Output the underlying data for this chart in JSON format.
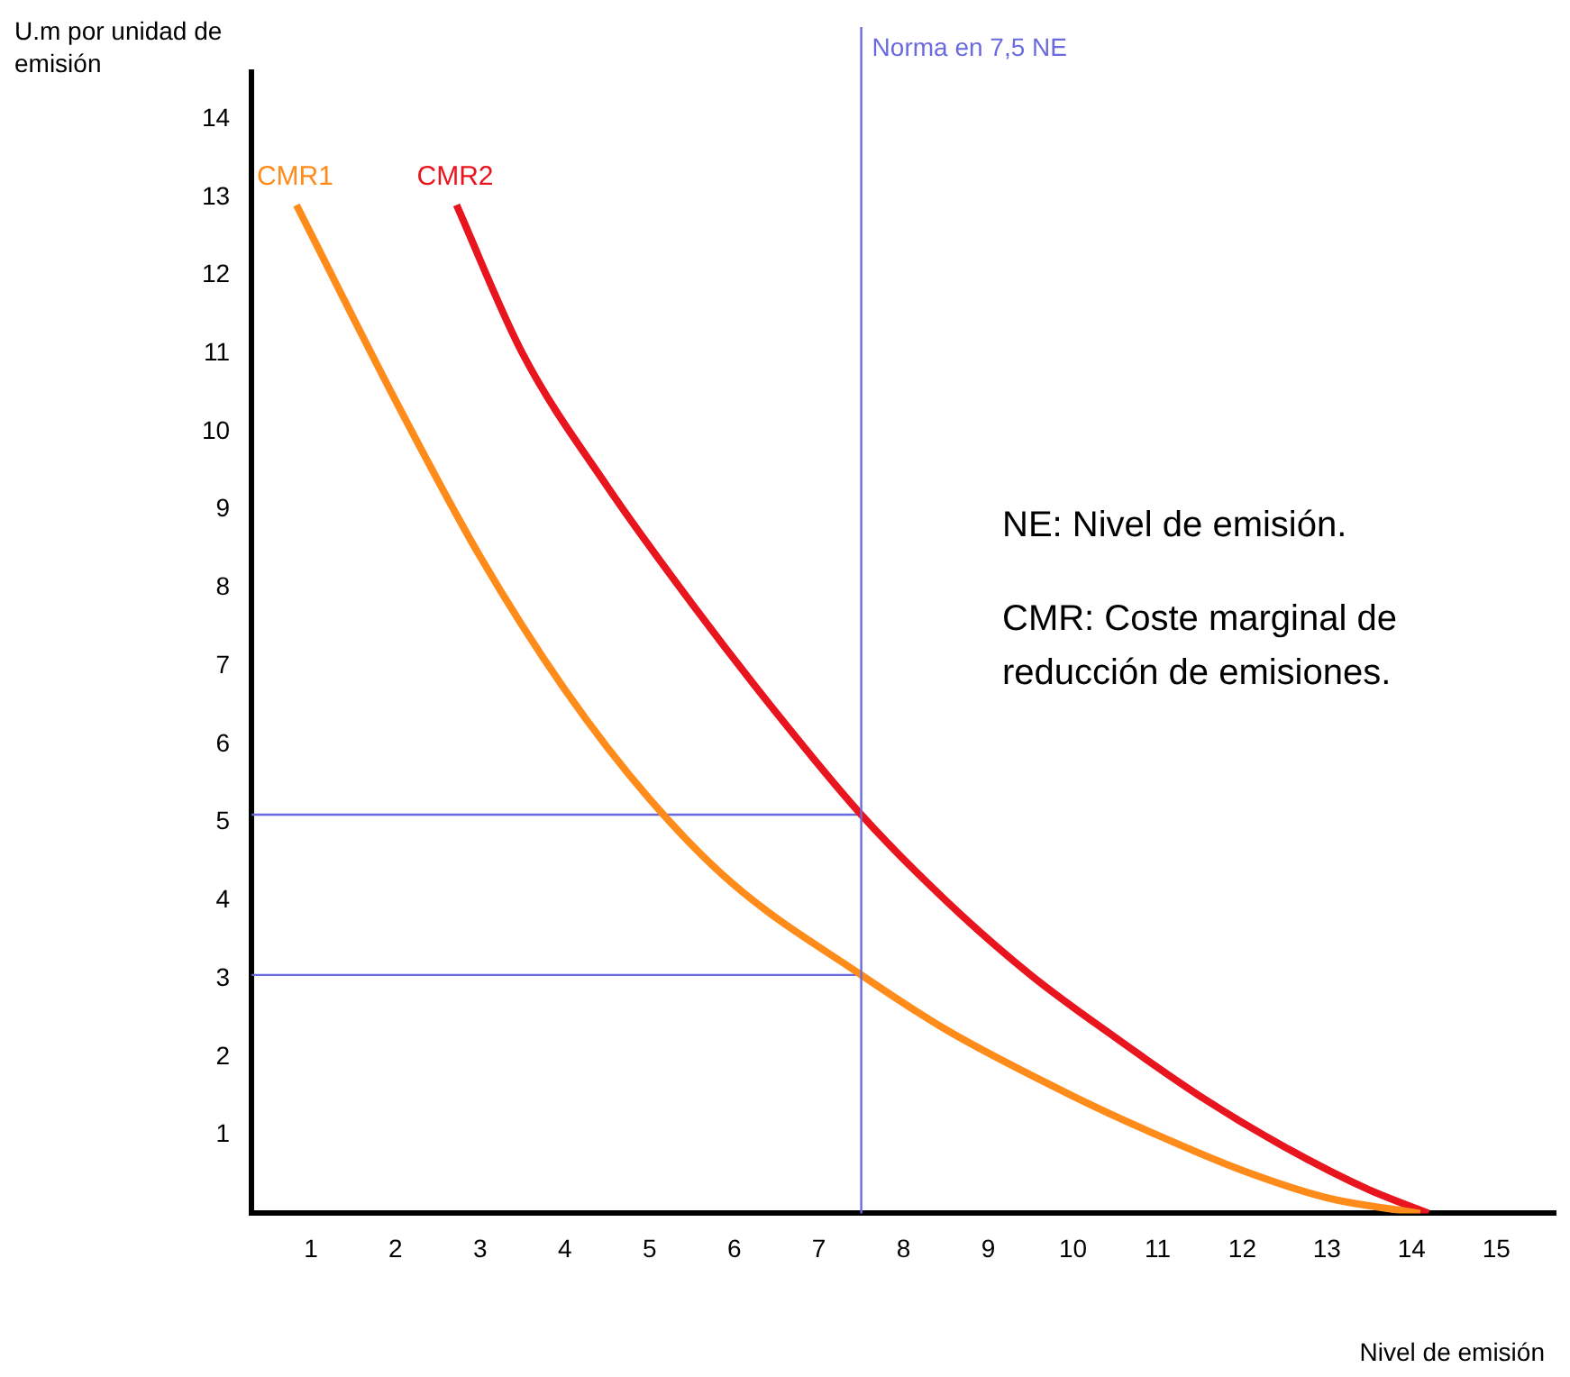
{
  "chart_data": {
    "type": "line",
    "xlabel": "Nivel de emisión",
    "ylabel": "U.m por unidad de emisión",
    "xlim": [
      0.3,
      15.7
    ],
    "ylim": [
      0,
      14.6
    ],
    "xticks": [
      1,
      2,
      3,
      4,
      5,
      6,
      7,
      8,
      9,
      10,
      11,
      12,
      13,
      14,
      15
    ],
    "yticks": [
      1,
      2,
      3,
      4,
      5,
      6,
      7,
      8,
      9,
      10,
      11,
      12,
      13,
      14
    ],
    "grid": false,
    "legend": false,
    "marker": "none",
    "series": [
      {
        "name": "CMR1",
        "color": "#ff8c1a",
        "x": [
          0.83,
          2,
          3,
          4,
          5,
          6,
          7.5,
          8.5,
          10,
          11,
          12,
          13,
          14.1
        ],
        "values": [
          12.9,
          10.4,
          8.4,
          6.7,
          5.3,
          4.2,
          3.05,
          2.35,
          1.5,
          1.0,
          0.55,
          0.2,
          0
        ]
      },
      {
        "name": "CMR2",
        "color": "#e8141e",
        "x": [
          2.72,
          3.5,
          4.5,
          5.5,
          6.5,
          7.5,
          8.5,
          9.5,
          10.5,
          11.5,
          12.5,
          13.5,
          14.2
        ],
        "values": [
          12.9,
          11.0,
          9.3,
          7.8,
          6.4,
          5.1,
          4.0,
          3.05,
          2.25,
          1.5,
          0.85,
          0.3,
          0
        ]
      },
      {
        "color": "#6a6ae0",
        "x": [
          0.3,
          7.5
        ],
        "values": [
          5.1,
          5.1
        ]
      },
      {
        "color": "#6a6ae0",
        "x": [
          0.3,
          7.5
        ],
        "values": [
          3.05,
          3.05
        ]
      }
    ],
    "ref_lines": [
      {
        "axis": "x",
        "value": 7.5,
        "label": "Norma en 7,5 NE",
        "color": "#6a6ae0"
      }
    ],
    "annotations": [
      "NE: Nivel de emisión.",
      "CMR: Coste marginal de reducción de emisiones."
    ]
  }
}
